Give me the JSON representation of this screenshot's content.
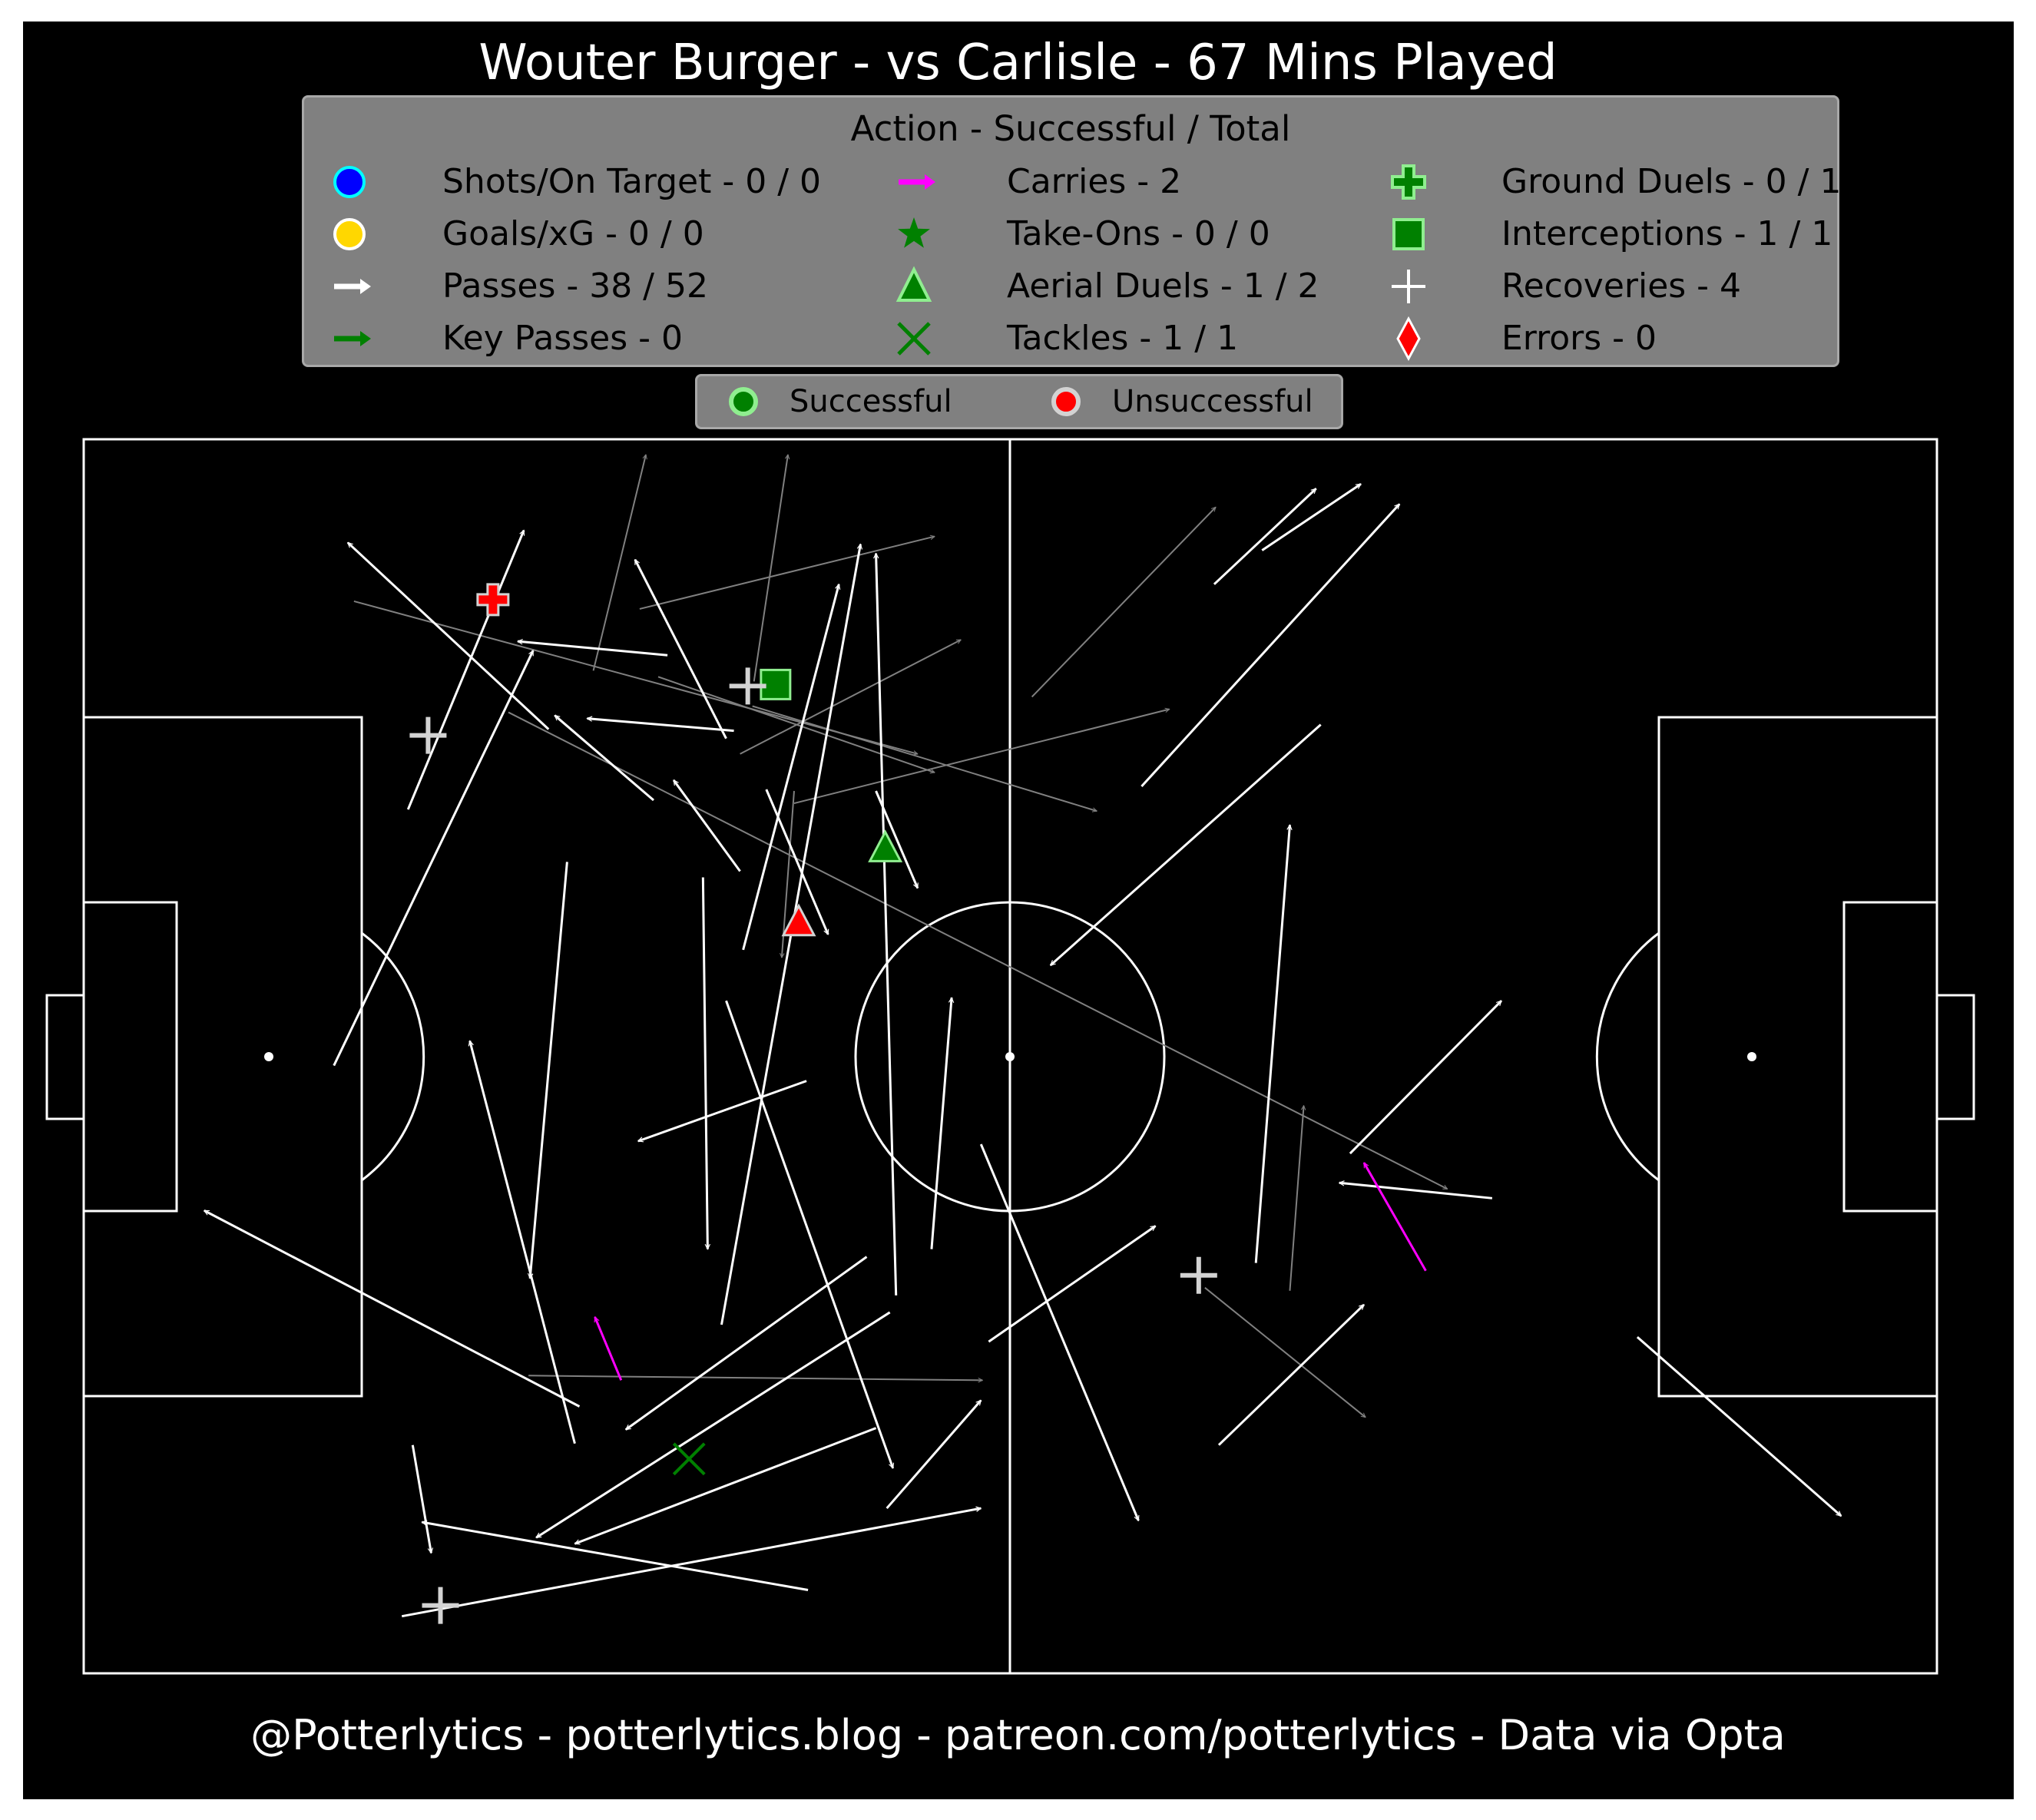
{
  "title": "Wouter Burger - vs Carlisle - 67 Mins Played",
  "footer": "@Potterlytics - potterlytics.blog - patreon.com/potterlytics - Data via Opta",
  "legend": {
    "title": "Action - Successful / Total",
    "items": [
      {
        "label": "Shots/On Target - 0 / 0",
        "icon": "circle-blue",
        "color": "#0000ff",
        "edge": "#00ffff"
      },
      {
        "label": "Goals/xG - 0 / 0",
        "icon": "circle-gold",
        "color": "#ffd700",
        "edge": "#ffffff"
      },
      {
        "label": "Passes - 38 / 52",
        "icon": "arrow-white",
        "color": "#ffffff"
      },
      {
        "label": "Key Passes - 0",
        "icon": "arrow-green",
        "color": "#008000"
      },
      {
        "label": "Carries - 2",
        "icon": "arrow-magenta",
        "color": "#ff00ff"
      },
      {
        "label": "Take-Ons - 0 / 0",
        "icon": "star-green",
        "color": "#008000"
      },
      {
        "label": "Aerial Duels - 1 / 2",
        "icon": "triangle-green",
        "color": "#008000",
        "edge": "#90ee90"
      },
      {
        "label": "Tackles - 1 / 1",
        "icon": "x-green",
        "color": "#008000"
      },
      {
        "label": "Ground Duels - 0 / 1",
        "icon": "plus-green",
        "color": "#008000",
        "edge": "#90ee90"
      },
      {
        "label": "Interceptions - 1 / 1",
        "icon": "square-green",
        "color": "#008000",
        "edge": "#90ee90"
      },
      {
        "label": "Recoveries - 4",
        "icon": "plus-white",
        "color": "#ffffff"
      },
      {
        "label": "Errors - 0",
        "icon": "diamond-red",
        "color": "#ff0000",
        "edge": "#ffffff"
      }
    ]
  },
  "outcome_legend": {
    "successful": {
      "label": "Successful",
      "color": "#008000",
      "edge": "#90ee90"
    },
    "unsuccessful": {
      "label": "Unsuccessful",
      "color": "#ff0000",
      "edge": "#d3d3d3"
    }
  },
  "colors": {
    "background": "#000000",
    "pitch_lines": "#ffffff",
    "pass_successful": "#ffffff",
    "pass_unsuccessful": "#808080",
    "carry": "#ff00ff"
  },
  "chart_data": {
    "type": "scatter",
    "pitch": {
      "length": 120,
      "width": 80,
      "units": "yards"
    },
    "passes_successful": [
      {
        "x": 30.1,
        "y": 61.2,
        "x2": 17.1,
        "y2": 73.3
      },
      {
        "x": 37.8,
        "y": 66.0,
        "x2": 28.1,
        "y2": 66.9
      },
      {
        "x": 41.6,
        "y": 60.6,
        "x2": 35.7,
        "y2": 72.2
      },
      {
        "x": 36.9,
        "y": 56.6,
        "x2": 30.5,
        "y2": 62.1
      },
      {
        "x": 42.1,
        "y": 61.1,
        "x2": 32.6,
        "y2": 61.9
      },
      {
        "x": 42.5,
        "y": 52.0,
        "x2": 38.2,
        "y2": 57.9
      },
      {
        "x": 21.0,
        "y": 56.0,
        "x2": 28.5,
        "y2": 74.1
      },
      {
        "x": 16.2,
        "y": 39.4,
        "x2": 29.1,
        "y2": 66.3
      },
      {
        "x": 42.7,
        "y": 46.9,
        "x2": 48.9,
        "y2": 70.6
      },
      {
        "x": 44.2,
        "y": 57.3,
        "x2": 48.2,
        "y2": 47.9
      },
      {
        "x": 51.3,
        "y": 57.2,
        "x2": 54.0,
        "y2": 50.9
      },
      {
        "x": 46.8,
        "y": 38.4,
        "x2": 35.9,
        "y2": 34.5
      },
      {
        "x": 40.1,
        "y": 51.6,
        "x2": 40.4,
        "y2": 27.5
      },
      {
        "x": 31.3,
        "y": 52.6,
        "x2": 28.9,
        "y2": 25.6
      },
      {
        "x": 41.3,
        "y": 22.6,
        "x2": 50.3,
        "y2": 73.2
      },
      {
        "x": 52.6,
        "y": 24.5,
        "x2": 51.3,
        "y2": 72.6
      },
      {
        "x": 54.9,
        "y": 27.5,
        "x2": 56.2,
        "y2": 43.8
      },
      {
        "x": 41.6,
        "y": 43.6,
        "x2": 52.4,
        "y2": 13.3
      },
      {
        "x": 31.8,
        "y": 14.9,
        "x2": 25.0,
        "y2": 41.0
      },
      {
        "x": 32.1,
        "y": 17.3,
        "x2": 7.8,
        "y2": 30.0
      },
      {
        "x": 50.7,
        "y": 27.0,
        "x2": 35.1,
        "y2": 15.8
      },
      {
        "x": 52.2,
        "y": 23.4,
        "x2": 29.3,
        "y2": 8.8
      },
      {
        "x": 51.3,
        "y": 15.9,
        "x2": 31.8,
        "y2": 8.4
      },
      {
        "x": 58.1,
        "y": 34.3,
        "x2": 68.3,
        "y2": 9.9
      },
      {
        "x": 46.9,
        "y": 5.4,
        "x2": 21.9,
        "y2": 9.8
      },
      {
        "x": 52.0,
        "y": 10.7,
        "x2": 58.1,
        "y2": 17.7
      },
      {
        "x": 58.6,
        "y": 21.5,
        "x2": 69.4,
        "y2": 29.0
      },
      {
        "x": 21.3,
        "y": 14.8,
        "x2": 22.5,
        "y2": 7.8
      },
      {
        "x": 20.6,
        "y": 3.7,
        "x2": 58.1,
        "y2": 10.7
      },
      {
        "x": 73.5,
        "y": 14.8,
        "x2": 82.9,
        "y2": 23.9
      },
      {
        "x": 75.9,
        "y": 26.6,
        "x2": 78.1,
        "y2": 55.0
      },
      {
        "x": 91.2,
        "y": 30.8,
        "x2": 81.3,
        "y2": 31.8
      },
      {
        "x": 82.0,
        "y": 33.7,
        "x2": 91.8,
        "y2": 43.6
      },
      {
        "x": 100.6,
        "y": 21.8,
        "x2": 113.8,
        "y2": 10.2
      },
      {
        "x": 80.1,
        "y": 61.5,
        "x2": 62.6,
        "y2": 45.9
      },
      {
        "x": 68.5,
        "y": 57.5,
        "x2": 85.2,
        "y2": 75.8
      },
      {
        "x": 73.2,
        "y": 70.6,
        "x2": 79.8,
        "y2": 76.8
      },
      {
        "x": 76.3,
        "y": 72.8,
        "x2": 82.7,
        "y2": 77.1
      }
    ],
    "passes_unsuccessful": [
      {
        "x": 33.0,
        "y": 65.0,
        "x2": 36.4,
        "y2": 79.0
      },
      {
        "x": 43.4,
        "y": 64.3,
        "x2": 45.6,
        "y2": 79.0
      },
      {
        "x": 36.0,
        "y": 69.0,
        "x2": 55.1,
        "y2": 73.7
      },
      {
        "x": 42.5,
        "y": 59.6,
        "x2": 56.8,
        "y2": 67.0
      },
      {
        "x": 37.2,
        "y": 64.6,
        "x2": 55.1,
        "y2": 58.4
      },
      {
        "x": 46.0,
        "y": 56.4,
        "x2": 70.3,
        "y2": 62.5
      },
      {
        "x": 43.3,
        "y": 62.7,
        "x2": 65.6,
        "y2": 55.9
      },
      {
        "x": 17.5,
        "y": 69.5,
        "x2": 54.0,
        "y2": 59.6
      },
      {
        "x": 27.5,
        "y": 62.3,
        "x2": 88.3,
        "y2": 31.4
      },
      {
        "x": 46.0,
        "y": 57.2,
        "x2": 45.2,
        "y2": 46.4
      },
      {
        "x": 61.4,
        "y": 63.3,
        "x2": 73.3,
        "y2": 75.6
      },
      {
        "x": 28.8,
        "y": 19.3,
        "x2": 58.2,
        "y2": 19.0
      },
      {
        "x": 72.6,
        "y": 25.0,
        "x2": 83.0,
        "y2": 16.6
      },
      {
        "x": 78.1,
        "y": 24.8,
        "x2": 79.0,
        "y2": 36.8
      }
    ],
    "carries": [
      {
        "x": 34.8,
        "y": 19.0,
        "x2": 33.1,
        "y2": 23.1
      },
      {
        "x": 86.9,
        "y": 26.1,
        "x2": 82.9,
        "y2": 33.1
      }
    ],
    "aerial_duels": [
      {
        "x": 51.9,
        "y": 53.5,
        "outcome": "successful"
      },
      {
        "x": 46.3,
        "y": 48.7,
        "outcome": "unsuccessful"
      }
    ],
    "ground_duels": [
      {
        "x": 26.5,
        "y": 69.6,
        "outcome": "unsuccessful"
      }
    ],
    "interceptions": [
      {
        "x": 44.8,
        "y": 64.1,
        "outcome": "successful"
      }
    ],
    "tackles": [
      {
        "x": 39.2,
        "y": 13.9,
        "outcome": "successful"
      }
    ],
    "recoveries": [
      {
        "x": 43.0,
        "y": 64.0
      },
      {
        "x": 22.3,
        "y": 60.8
      },
      {
        "x": 72.2,
        "y": 25.8
      },
      {
        "x": 23.1,
        "y": 4.4
      }
    ]
  }
}
